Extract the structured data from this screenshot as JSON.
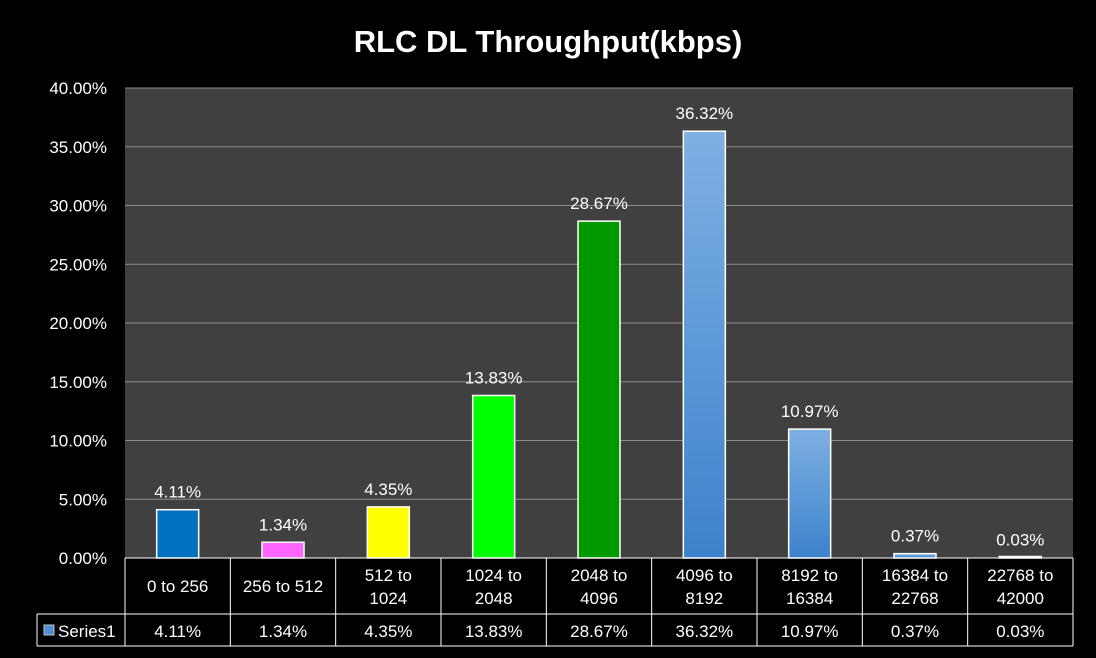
{
  "chart_data": {
    "type": "bar",
    "title": "RLC DL Throughput(kbps)",
    "xlabel": "",
    "ylabel": "",
    "ylim": [
      0,
      40
    ],
    "ytick_values": [
      0,
      5,
      10,
      15,
      20,
      25,
      30,
      35,
      40
    ],
    "yticks": [
      "0.00%",
      "5.00%",
      "10.00%",
      "15.00%",
      "20.00%",
      "25.00%",
      "30.00%",
      "35.00%",
      "40.00%"
    ],
    "grid": true,
    "legend_placement": "data-table-left",
    "categories": [
      [
        "0 to 256"
      ],
      [
        "256 to 512"
      ],
      [
        "512 to",
        "1024"
      ],
      [
        "1024 to",
        "2048"
      ],
      [
        "2048 to",
        "4096"
      ],
      [
        "4096 to",
        "8192"
      ],
      [
        "8192 to",
        "16384"
      ],
      [
        "16384 to",
        "22768"
      ],
      [
        "22768 to",
        "42000"
      ]
    ],
    "series": [
      {
        "name": "Series1",
        "values": [
          4.11,
          1.34,
          4.35,
          13.83,
          28.67,
          36.32,
          10.97,
          0.37,
          0.03
        ],
        "labels": [
          "4.11%",
          "1.34%",
          "4.35%",
          "13.83%",
          "28.67%",
          "36.32%",
          "10.97%",
          "0.37%",
          "0.03%"
        ]
      }
    ],
    "colors": {
      "background": "#000000",
      "plot_area": "#404040",
      "gridline": "#8c8c8c",
      "bars": [
        "#0070c0",
        "#ff66ff",
        "#ffff00",
        "#00ff00",
        "#009900",
        "gradient-blue",
        "gradient-blue",
        "gradient-blue",
        "#ffffff"
      ],
      "legend_key": "#4f8fd8"
    }
  }
}
